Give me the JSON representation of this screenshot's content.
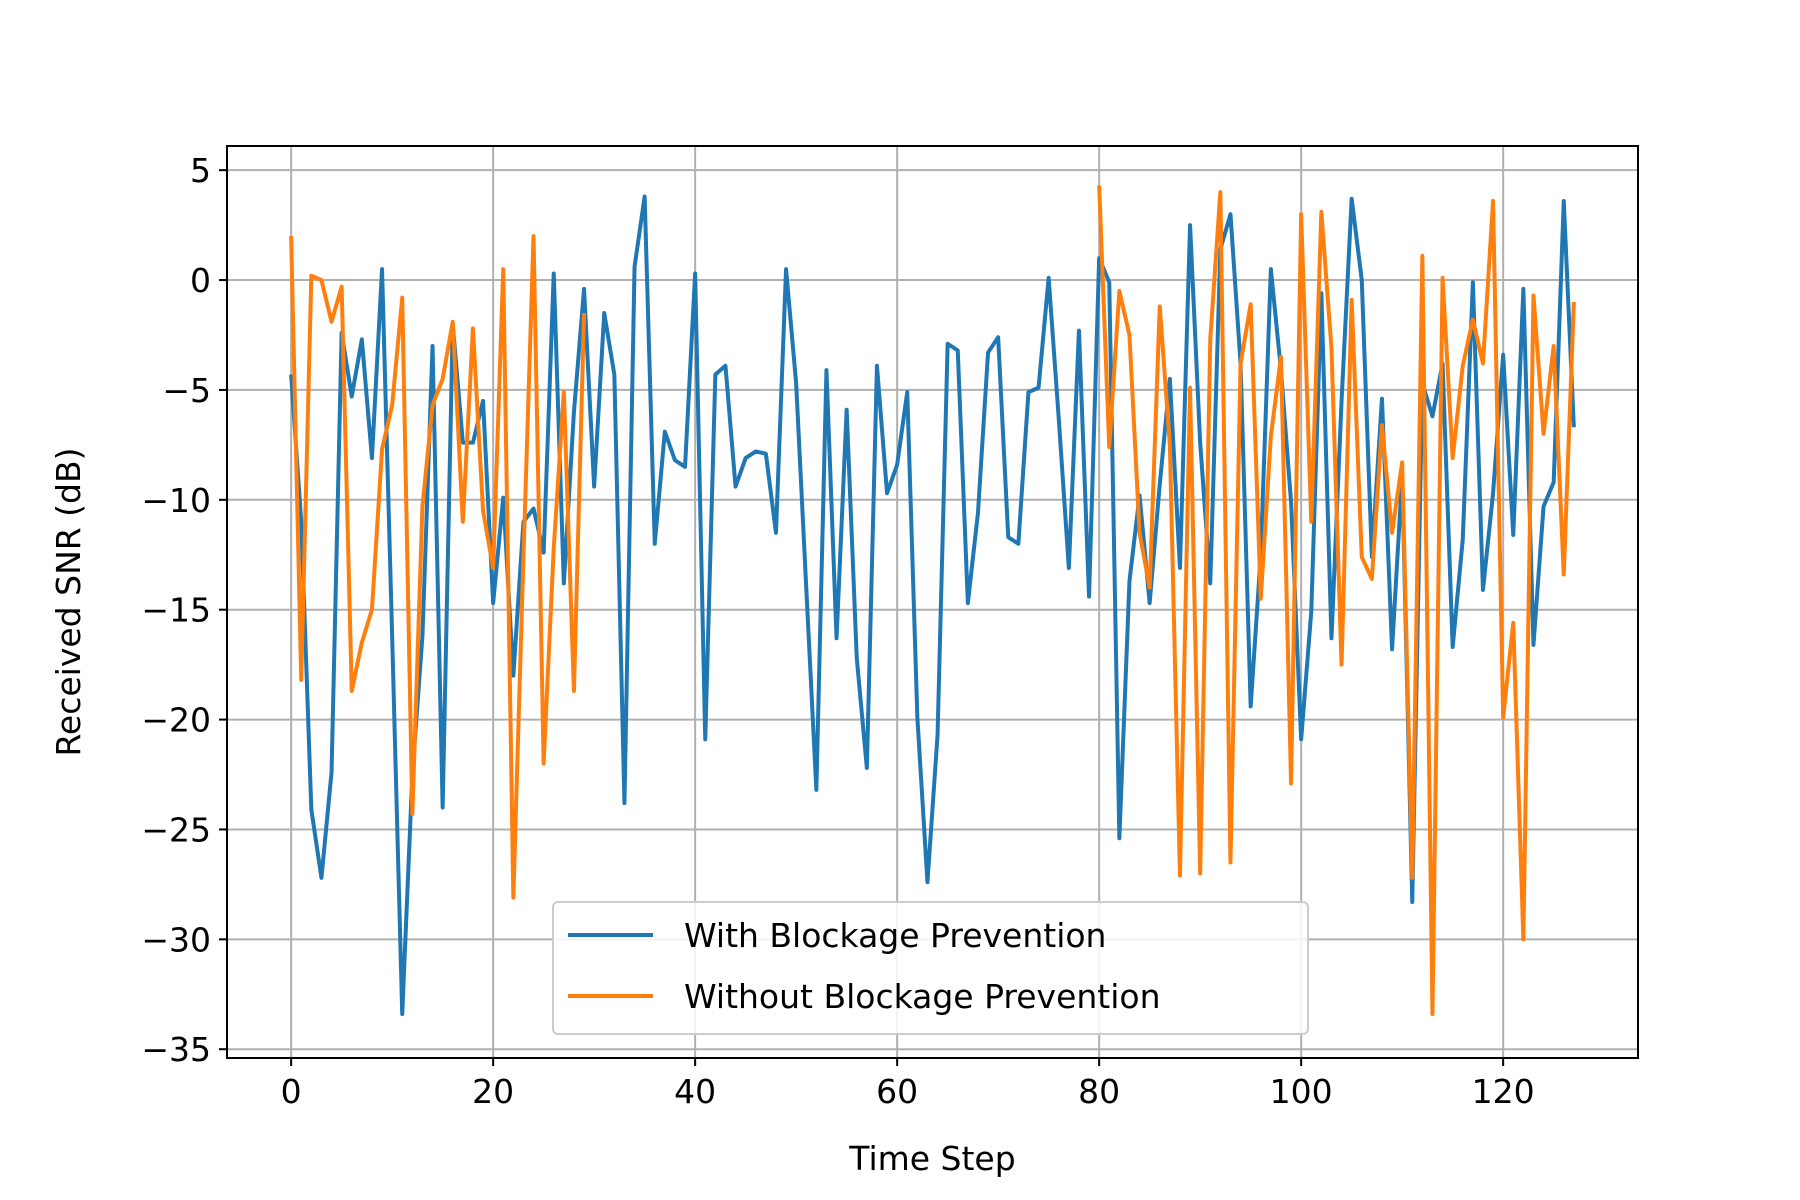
{
  "chart_data": {
    "type": "line",
    "title": "",
    "xlabel": "Time Step",
    "ylabel": "Received SNR (dB)",
    "xlim": [
      -6.35,
      133.35
    ],
    "ylim": [
      -35.4,
      6.1
    ],
    "xticks": [
      0,
      20,
      40,
      60,
      80,
      100,
      120
    ],
    "xtick_labels": [
      "0",
      "20",
      "40",
      "60",
      "80",
      "100",
      "120"
    ],
    "yticks": [
      5,
      0,
      -5,
      -10,
      -15,
      -20,
      -25,
      -30,
      -35
    ],
    "ytick_labels": [
      "5",
      "0",
      "−5",
      "−10",
      "−15",
      "−20",
      "−25",
      "−30",
      "−35"
    ],
    "grid": true,
    "legend_position": "lower-center",
    "series": [
      {
        "name": "With Blockage Prevention",
        "color": "#1f77b4",
        "x_start": 0,
        "values": [
          -4.3,
          -11,
          -24.1,
          -27.2,
          -22.4,
          -2.4,
          -5.3,
          -2.7,
          -8.1,
          0.5,
          -16.2,
          -33.4,
          -22.5,
          -16.2,
          -3,
          -24,
          -2,
          -7.4,
          -7.4,
          -5.5,
          -14.7,
          -9.9,
          -18,
          -11,
          -10.4,
          -12.4,
          0.3,
          -13.8,
          -6,
          -0.4,
          -9.4,
          -1.5,
          -4.3,
          -23.8,
          0.6,
          3.8,
          -12,
          -6.9,
          -8.2,
          -8.5,
          0.3,
          -20.9,
          -4.3,
          -3.9,
          -9.4,
          -8.1,
          -7.8,
          -7.9,
          -11.5,
          0.5,
          -4.7,
          -14,
          -23.2,
          -4.1,
          -16.3,
          -5.9,
          -17.2,
          -22.2,
          -3.9,
          -9.7,
          -8.4,
          -5.1,
          -19.9,
          -27.4,
          -20.7,
          -2.9,
          -3.2,
          -14.7,
          -10.6,
          -3.3,
          -2.6,
          -11.7,
          -12,
          -5.1,
          -4.9,
          0.1,
          -6.3,
          -13.1,
          -2.3,
          -14.4,
          1,
          -0.1,
          -25.4,
          -13.7,
          -9.8,
          -14.7,
          -9.3,
          -4.5,
          -13.1,
          2.5,
          -7.4,
          -13.8,
          1.4,
          3,
          -3.8,
          -19.4,
          -12.5,
          0.5,
          -4.1,
          -10.1,
          -20.9,
          -15.1,
          -0.6,
          -16.3,
          -5.5,
          3.7,
          0,
          -12.6,
          -5.4,
          -16.8,
          -8.9,
          -28.3,
          -4.7,
          -6.2,
          -3.8,
          -16.7,
          -11.8,
          -0.1,
          -14.1,
          -9.7,
          -3.4,
          -11.6,
          -0.4,
          -16.6,
          -10.3,
          -9.2,
          3.6,
          -6.7
        ]
      },
      {
        "name": "Without Blockage Prevention",
        "color": "#ff7f0e",
        "segments": [
          {
            "x_start": 0,
            "values": [
              2,
              -18.2,
              0.2,
              0,
              -1.9,
              -0.3,
              -18.7,
              -16.5,
              -15,
              -7.7,
              -5.7,
              -0.8,
              -24.3,
              -10.3,
              -5.7,
              -4.5,
              -1.9,
              -11,
              -2.2,
              -10.5,
              -13.1,
              0.5,
              -28.1,
              -12.6,
              2,
              -22,
              -12.2,
              -5.1,
              -18.7,
              -1.5
            ]
          },
          {
            "x_start": 80,
            "values": [
              4.3,
              -7.6,
              -0.5,
              -2.5,
              -11.5,
              -14,
              -1.2,
              -7.5,
              -27.1,
              -4.9,
              -27,
              -2.7,
              4,
              -26.5,
              -3.8,
              -1.1,
              -14.5,
              -7.1,
              -3.5,
              -22.9,
              3,
              -11,
              3.1,
              -3.1,
              -17.5,
              -0.9,
              -12.6,
              -13.6,
              -6.6,
              -11.5,
              -8.3,
              -27.2,
              1.1,
              -33.4,
              0.1,
              -8.1,
              -3.9,
              -1.8,
              -3.8,
              3.6,
              -19.9,
              -15.6,
              -30,
              -0.7,
              -7,
              -3,
              -13.4,
              -1
            ]
          }
        ]
      }
    ]
  }
}
